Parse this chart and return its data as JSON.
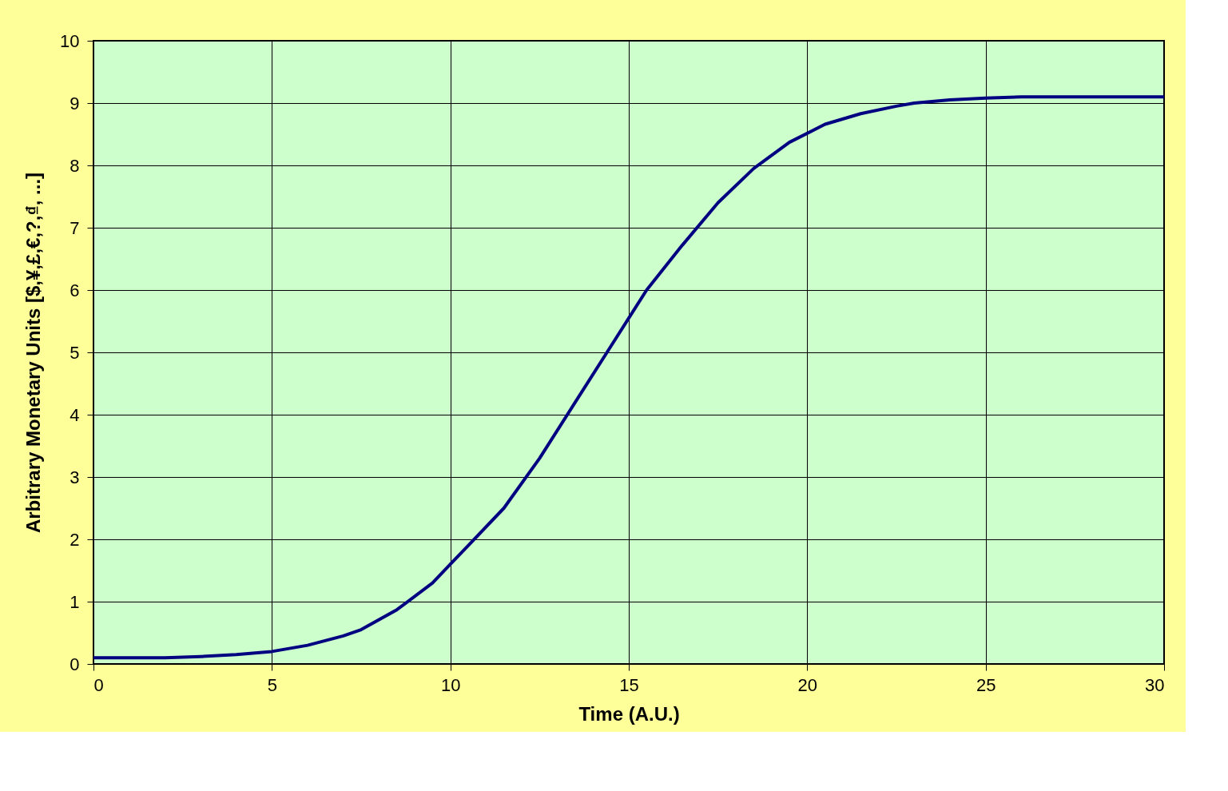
{
  "chart_data": {
    "type": "line",
    "xlabel": "Time (A.U.)",
    "ylabel": "Arbitrary Monetary Units [$,¥,£,€,?,₫, ...]",
    "x": [
      0,
      1,
      2,
      3,
      4,
      5,
      6,
      7,
      7.5,
      8.5,
      9.5,
      10,
      10.5,
      11.5,
      12.5,
      13.5,
      14.5,
      15,
      15.5,
      16.5,
      17.5,
      18.5,
      19.5,
      20.5,
      21.5,
      22.5,
      23,
      24,
      25,
      26,
      27,
      28,
      29,
      30
    ],
    "series": [
      {
        "color": "#000080",
        "values": [
          0.1,
          0.1,
          0.1,
          0.12,
          0.15,
          0.2,
          0.3,
          0.45,
          0.55,
          0.87,
          1.3,
          1.6,
          1.9,
          2.5,
          3.3,
          4.2,
          5.1,
          5.55,
          6.0,
          6.72,
          7.4,
          7.95,
          8.37,
          8.66,
          8.83,
          8.95,
          9.0,
          9.05,
          9.08,
          9.1,
          9.1,
          9.1,
          9.1,
          9.1
        ]
      }
    ],
    "xlim": [
      0,
      30
    ],
    "ylim": [
      0,
      10
    ],
    "xticks": [
      0,
      5,
      10,
      15,
      20,
      25,
      30
    ],
    "yticks": [
      0,
      1,
      2,
      3,
      4,
      5,
      6,
      7,
      8,
      9,
      10
    ],
    "grid": true,
    "marker": "none",
    "line_style": "solid"
  }
}
